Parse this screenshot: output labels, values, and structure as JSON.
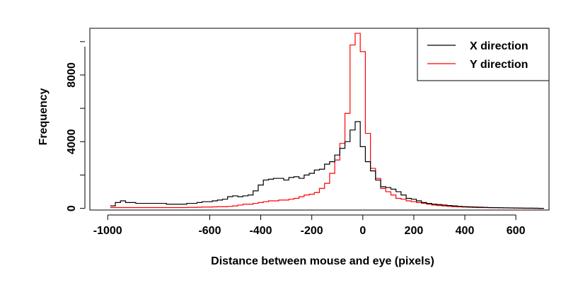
{
  "chart_data": {
    "type": "line",
    "step": true,
    "xlabel": "Distance between mouse and eye (pixels)",
    "ylabel": "Frequency",
    "xlim": [
      -1070,
      730
    ],
    "ylim": [
      -100,
      10800
    ],
    "x_ticks": [
      -1000,
      -600,
      -400,
      -200,
      0,
      200,
      400,
      600
    ],
    "x_tick_labels": [
      "-1000",
      "-600",
      "-400",
      "-200",
      "0",
      "200",
      "400",
      "600"
    ],
    "y_ticks": [
      0,
      4000,
      8000
    ],
    "y_tick_labels": [
      "0",
      "4000",
      "8000"
    ],
    "grid": false,
    "legend_position": "top-right",
    "series": [
      {
        "name": "X direction",
        "color": "#000000",
        "x": [
          -980,
          -960,
          -940,
          -920,
          -900,
          -880,
          -860,
          -840,
          -820,
          -800,
          -780,
          -760,
          -740,
          -720,
          -700,
          -680,
          -660,
          -640,
          -620,
          -600,
          -580,
          -560,
          -540,
          -520,
          -500,
          -480,
          -460,
          -440,
          -420,
          -400,
          -380,
          -360,
          -340,
          -320,
          -300,
          -280,
          -260,
          -240,
          -220,
          -200,
          -180,
          -160,
          -140,
          -120,
          -100,
          -80,
          -60,
          -40,
          -20,
          0,
          20,
          40,
          60,
          80,
          100,
          120,
          140,
          160,
          180,
          200,
          220,
          240,
          260,
          280,
          300,
          320,
          340,
          360,
          380,
          400,
          420,
          440,
          460,
          480,
          500,
          520,
          540,
          560,
          580,
          600,
          620,
          640,
          660,
          680,
          700
        ],
        "values": [
          150,
          350,
          450,
          350,
          350,
          300,
          300,
          300,
          300,
          300,
          300,
          250,
          250,
          250,
          250,
          300,
          300,
          350,
          400,
          400,
          450,
          500,
          550,
          700,
          750,
          700,
          750,
          800,
          1050,
          1400,
          1700,
          1750,
          1800,
          1800,
          1700,
          1850,
          1900,
          1800,
          2000,
          2100,
          2300,
          2350,
          2650,
          2800,
          3200,
          3600,
          4000,
          4700,
          5200,
          3700,
          2800,
          2250,
          1700,
          1300,
          1250,
          1150,
          1000,
          800,
          600,
          550,
          450,
          350,
          300,
          250,
          230,
          200,
          170,
          150,
          120,
          100,
          90,
          80,
          70,
          60,
          50,
          45,
          40,
          35,
          30,
          25,
          20,
          15,
          10,
          5,
          0
        ]
      },
      {
        "name": "Y direction",
        "color": "#ff0000",
        "x": [
          -980,
          -960,
          -940,
          -920,
          -900,
          -880,
          -860,
          -840,
          -820,
          -800,
          -780,
          -760,
          -740,
          -720,
          -700,
          -680,
          -660,
          -640,
          -620,
          -600,
          -580,
          -560,
          -540,
          -520,
          -500,
          -480,
          -460,
          -440,
          -420,
          -400,
          -380,
          -360,
          -340,
          -320,
          -300,
          -280,
          -260,
          -240,
          -220,
          -200,
          -180,
          -160,
          -140,
          -120,
          -100,
          -80,
          -60,
          -40,
          -20,
          0,
          20,
          40,
          60,
          80,
          100,
          120,
          140,
          160,
          180,
          200,
          220,
          240,
          260,
          280,
          300,
          320,
          340,
          360,
          380,
          400,
          420,
          440,
          460,
          480,
          500,
          520,
          540,
          560,
          580,
          600,
          620,
          640,
          660,
          680,
          700
        ],
        "values": [
          50,
          50,
          50,
          50,
          50,
          50,
          50,
          50,
          50,
          50,
          50,
          50,
          50,
          50,
          50,
          60,
          60,
          70,
          80,
          80,
          90,
          100,
          100,
          120,
          150,
          200,
          250,
          250,
          300,
          350,
          400,
          450,
          450,
          500,
          500,
          550,
          600,
          700,
          800,
          850,
          950,
          1200,
          1500,
          2100,
          2900,
          3900,
          5700,
          9800,
          10500,
          9400,
          4500,
          2400,
          1800,
          1200,
          1000,
          800,
          600,
          550,
          450,
          400,
          350,
          300,
          250,
          200,
          170,
          150,
          120,
          100,
          90,
          80,
          70,
          60,
          50,
          45,
          40,
          35,
          30,
          25,
          20,
          15,
          10,
          5,
          5,
          5,
          0
        ]
      }
    ]
  }
}
